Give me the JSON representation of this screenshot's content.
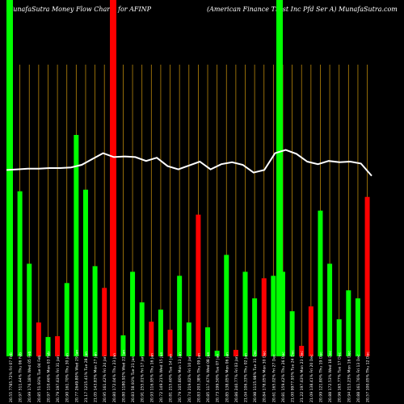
{
  "header": {
    "left": "MunafaSutra  Money Flow  Charts for AFINP",
    "right": "(American  Finance   Trust Inc Pfd Ser A) MunafaSutra.com"
  },
  "colors": {
    "up": "#00ff00",
    "down": "#ff0000",
    "grid": "#b8860b",
    "line": "#ffffff",
    "background": "#000000"
  },
  "chart_data": {
    "type": "bar",
    "grid": true,
    "categories": [
      "Fri 07 Feb",
      "Thu 06 Feb",
      "Wed 05 Feb",
      "Tue 04 Feb",
      "Mon 03 Feb",
      "Fri 31 Jan",
      "Thu 30 Jan",
      "Wed 29 Jan",
      "Tue 28 Jan",
      "Mon 27 Jan",
      "Fri 24 Jan",
      "Thu 23 Jan",
      "Wed 22 Jan",
      "Tue 21 Jan",
      "Fri 17 Jan",
      "Thu 16 Jan",
      "Wed 15 Jan",
      "Tue 14 Jan",
      "Mon 13 Jan",
      "Fri 10 Jan",
      "Thu 09 Jan",
      "Wed 08 Jan",
      "Tue 07 Jan",
      "Mon 06 Jan",
      "Fri 03 Jan",
      "Thu 02 Jan",
      "Tue 31 Dec",
      "Mon 30 Dec",
      "Fri 27 Dec",
      "Thu 26 Dec",
      "Tue 24 Dec",
      "Mon 23 Dec",
      "Fri 20 Dec",
      "Thu 19 Dec",
      "Wed 18 Dec",
      "Tue 17 Dec",
      "Mon 16 Dec",
      "Fri 13 Dec",
      "Thu 12 Dec"
    ],
    "tick_labels": [
      "20.55 7785.72%",
      "20.97 511.44%",
      "20.99 176.18%",
      "20.85 51.93%",
      "20.97 110.46%",
      "20.79 197.63%",
      "20.90 161.70%",
      "20.77 2649.80%",
      "21.17 1215.41%",
      "21.05 143.83%",
      "20.95 161.42%",
      "20.80 172.04%",
      "20.80 1180.92%",
      "20.83 58.93%",
      "20.91 255.01%",
      "20.93 116.95%",
      "20.72 149.21%",
      "20.81 215.60%",
      "20.79 105.80%",
      "20.74 219.02%",
      "20.83 203.38%",
      "20.85 117.67%",
      "20.73 199.50%",
      "20.85 138.05%",
      "20.86 240.77%",
      "21.04 106.33%",
      "20.98 1115.98%",
      "20.84 178.05%",
      "20.61 165.02%",
      "20.81 159.42%",
      "21.00 9977.93%",
      "21.22 197.63%",
      "21.09 138.41%",
      "20.99 121.80%",
      "20.88 172.53%",
      "20.96 165.77%",
      "20.94 213.23%",
      "20.88 161.76%",
      "20.57 100.05%"
    ],
    "series": [
      {
        "values": [
          100,
          205,
          115,
          42,
          24,
          25,
          91,
          275,
          207,
          112,
          85,
          100,
          26,
          105,
          67,
          43,
          58,
          33,
          100,
          42,
          176,
          36,
          7,
          126,
          8,
          105,
          72,
          97,
          100,
          105,
          56,
          13,
          62,
          181,
          115,
          46,
          82,
          72,
          198
        ],
        "directions": [
          "up",
          "up",
          "up",
          "down",
          "up",
          "down",
          "up",
          "up",
          "up",
          "up",
          "down",
          "down",
          "up",
          "up",
          "up",
          "down",
          "up",
          "down",
          "up",
          "up",
          "down",
          "up",
          "up",
          "up",
          "down",
          "up",
          "up",
          "down",
          "up",
          "up",
          "up",
          "down",
          "down",
          "up",
          "up",
          "up",
          "up",
          "up",
          "down"
        ]
      }
    ],
    "price_line": [
      21.12,
      21.13,
      21.14,
      21.14,
      21.15,
      21.15,
      21.16,
      21.2,
      21.29,
      21.38,
      21.32,
      21.33,
      21.32,
      21.26,
      21.31,
      21.18,
      21.13,
      21.19,
      21.25,
      21.13,
      21.21,
      21.24,
      21.2,
      21.08,
      21.12,
      21.38,
      21.43,
      21.37,
      21.25,
      21.21,
      21.26,
      21.24,
      21.25,
      21.22,
      21.03
    ]
  }
}
